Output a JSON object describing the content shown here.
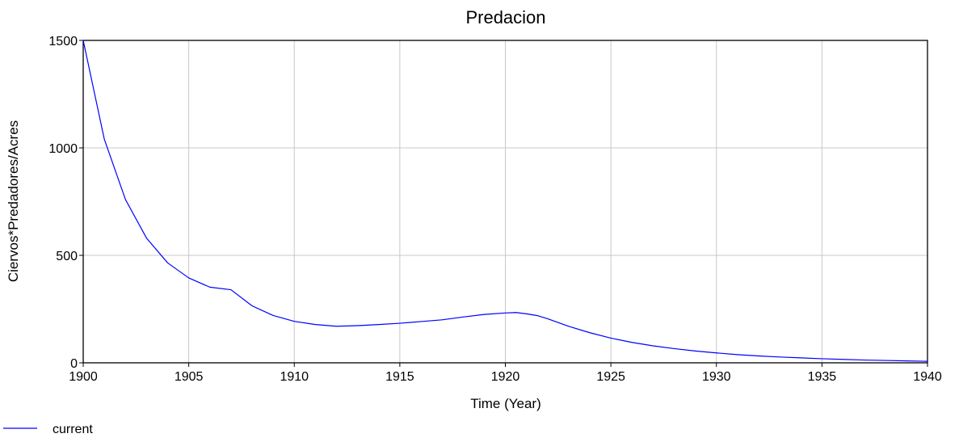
{
  "chart_data": {
    "type": "line",
    "title": "Predacion",
    "xlabel": "Time (Year)",
    "ylabel": "Ciervos*Predadores/Acres",
    "xlim": [
      1900,
      1940
    ],
    "ylim": [
      0,
      1500
    ],
    "x_ticks": [
      "1900",
      "1905",
      "1910",
      "1915",
      "1920",
      "1925",
      "1930",
      "1935",
      "1940"
    ],
    "y_ticks": [
      "0",
      "500",
      "1000",
      "1500"
    ],
    "grid": true,
    "legend_position": "bottom-left",
    "series": [
      {
        "name": "current",
        "color": "#0000ff",
        "x": [
          1900,
          1901,
          1902,
          1903,
          1904,
          1905,
          1906,
          1907,
          1908,
          1909,
          1910,
          1911,
          1912,
          1913,
          1914,
          1915,
          1916,
          1917,
          1918,
          1919,
          1920,
          1920.5,
          1921,
          1921.5,
          1922,
          1923,
          1924,
          1925,
          1926,
          1927,
          1928,
          1929,
          1930,
          1931,
          1932,
          1933,
          1934,
          1935,
          1936,
          1937,
          1938,
          1939,
          1940
        ],
        "y": [
          1500,
          1040,
          760,
          580,
          465,
          395,
          352,
          340,
          265,
          220,
          193,
          178,
          170,
          173,
          178,
          184,
          192,
          200,
          213,
          225,
          232,
          234,
          228,
          220,
          205,
          170,
          140,
          115,
          95,
          79,
          66,
          55,
          46,
          38,
          32,
          27,
          23,
          19,
          16,
          13,
          11,
          9,
          7
        ]
      }
    ]
  }
}
